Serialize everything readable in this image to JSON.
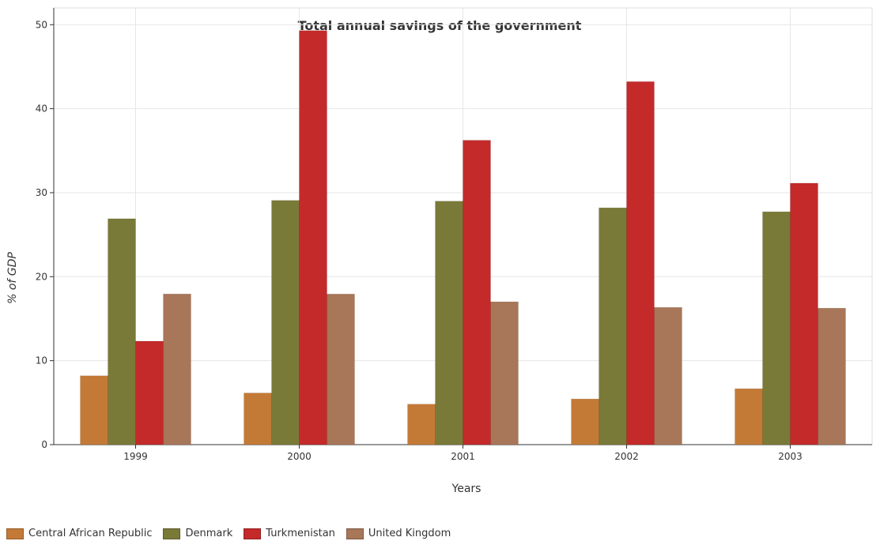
{
  "chart_data": {
    "type": "bar",
    "title": "Total annual savings of the government",
    "xlabel": "Years",
    "ylabel": "% of GDP",
    "categories": [
      "1999",
      "2000",
      "2001",
      "2002",
      "2003"
    ],
    "ylim": [
      0,
      52
    ],
    "yticks": [
      0,
      10,
      20,
      30,
      40,
      50
    ],
    "grid": true,
    "legend_position": "bottom-left",
    "series": [
      {
        "name": "Central African Republic",
        "color": "#c47a37",
        "values": [
          8.2,
          6.15,
          4.82,
          5.44,
          6.66
        ]
      },
      {
        "name": "Denmark",
        "color": "#7a7a38",
        "values": [
          26.9,
          29.08,
          28.99,
          28.2,
          27.73
        ]
      },
      {
        "name": "Turkmenistan",
        "color": "#c42a2a",
        "values": [
          12.32,
          49.3,
          36.24,
          43.22,
          31.13
        ]
      },
      {
        "name": "United Kingdom",
        "color": "#a87658",
        "values": [
          17.94,
          17.93,
          17.01,
          16.34,
          16.25
        ]
      }
    ]
  }
}
